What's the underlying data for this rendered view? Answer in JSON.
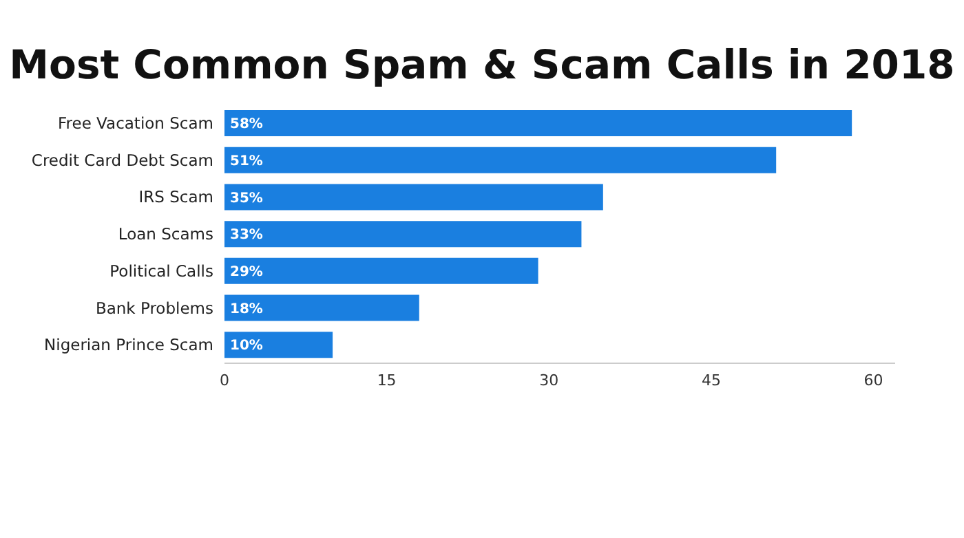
{
  "chart_data": {
    "type": "bar",
    "orientation": "horizontal",
    "title": "Most Common Spam & Scam Calls in 2018",
    "categories": [
      "Free Vacation Scam",
      "Credit Card Debt Scam",
      "IRS Scam",
      "Loan Scams",
      "Political Calls",
      "Bank Problems",
      "Nigerian Prince Scam"
    ],
    "values": [
      58,
      51,
      35,
      33,
      29,
      18,
      10
    ],
    "value_labels": [
      "58%",
      "51%",
      "35%",
      "33%",
      "29%",
      "18%",
      "10%"
    ],
    "color": "#1a7fe0",
    "xlim": [
      0,
      62
    ],
    "xticks": [
      0,
      15,
      30,
      45,
      60
    ],
    "grid": false
  }
}
